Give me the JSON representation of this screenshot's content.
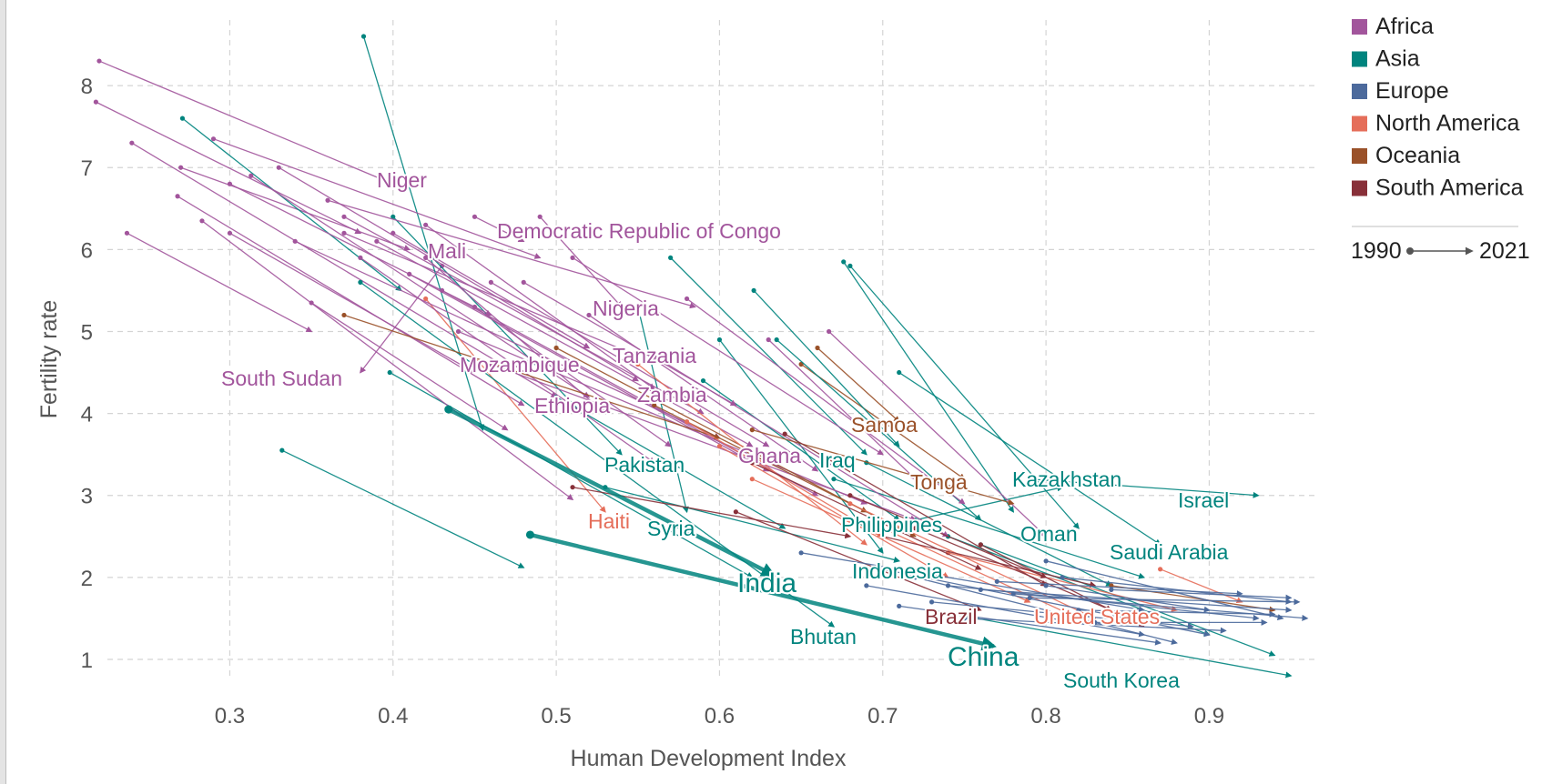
{
  "chart_data": {
    "type": "scatter",
    "subtype": "connected-arrows",
    "xlabel": "Human Development Index",
    "ylabel": "Fertility rate",
    "xlim": [
      0.215,
      0.965
    ],
    "ylim": [
      0.7,
      8.8
    ],
    "xticks": [
      "0.3",
      "0.4",
      "0.5",
      "0.6",
      "0.7",
      "0.8",
      "0.9"
    ],
    "xtick_values": [
      0.3,
      0.4,
      0.5,
      0.6,
      0.7,
      0.8,
      0.9
    ],
    "yticks": [
      "1",
      "2",
      "3",
      "4",
      "5",
      "6",
      "7",
      "8"
    ],
    "ytick_values": [
      1,
      2,
      3,
      4,
      5,
      6,
      7,
      8
    ],
    "grid": true,
    "legend_position": "top-right",
    "legend": [
      {
        "name": "Africa",
        "color": "#a2559c"
      },
      {
        "name": "Asia",
        "color": "#00847e"
      },
      {
        "name": "Europe",
        "color": "#4c6a9c"
      },
      {
        "name": "North America",
        "color": "#e56e5a"
      },
      {
        "name": "Oceania",
        "color": "#9a5129"
      },
      {
        "name": "South America",
        "color": "#883039"
      }
    ],
    "time_legend": {
      "start": "1990",
      "end": "2021"
    },
    "series": [
      {
        "name": "Niger",
        "region": "Africa",
        "x": [
          0.22,
          0.4
        ],
        "y": [
          8.3,
          6.8
        ],
        "labeled": true
      },
      {
        "name": "Democratic Republic of Congo",
        "region": "Africa",
        "x": [
          0.45,
          0.48
        ],
        "y": [
          6.4,
          6.1
        ],
        "labeled": true
      },
      {
        "name": "Mali",
        "region": "Africa",
        "x": [
          0.27,
          0.41
        ],
        "y": [
          7.0,
          6.0
        ],
        "labeled": true
      },
      {
        "name": "Nigeria",
        "region": "Africa",
        "x": [
          0.49,
          0.54
        ],
        "y": [
          6.4,
          5.3
        ],
        "labeled": true
      },
      {
        "name": "South Sudan",
        "region": "Africa",
        "x": [
          0.43,
          0.38
        ],
        "y": [
          5.8,
          4.5
        ],
        "labeled": true
      },
      {
        "name": "Mozambique",
        "region": "Africa",
        "x": [
          0.3,
          0.45
        ],
        "y": [
          6.2,
          4.5
        ],
        "labeled": true
      },
      {
        "name": "Tanzania",
        "region": "Africa",
        "x": [
          0.37,
          0.55
        ],
        "y": [
          6.2,
          4.7
        ],
        "labeled": true
      },
      {
        "name": "Ethiopia",
        "region": "Africa",
        "x": [
          0.24,
          0.5
        ],
        "y": [
          7.3,
          4.2
        ],
        "labeled": true
      },
      {
        "name": "Zambia",
        "region": "Africa",
        "x": [
          0.42,
          0.56
        ],
        "y": [
          6.3,
          4.3
        ],
        "labeled": true
      },
      {
        "name": "Pakistan",
        "region": "Asia",
        "x": [
          0.4,
          0.54
        ],
        "y": [
          6.4,
          3.5
        ],
        "labeled": true
      },
      {
        "name": "Ghana",
        "region": "Africa",
        "x": [
          0.46,
          0.63
        ],
        "y": [
          5.6,
          3.6
        ],
        "labeled": true
      },
      {
        "name": "Iraq",
        "region": "Asia",
        "x": [
          0.57,
          0.69
        ],
        "y": [
          5.9,
          3.5
        ],
        "labeled": true
      },
      {
        "name": "Samoa",
        "region": "Oceania",
        "x": [
          0.66,
          0.71
        ],
        "y": [
          4.8,
          3.9
        ],
        "labeled": true
      },
      {
        "name": "Tonga",
        "region": "Oceania",
        "x": [
          0.65,
          0.75
        ],
        "y": [
          4.6,
          3.2
        ],
        "labeled": true
      },
      {
        "name": "Kazakhstan",
        "region": "Asia",
        "x": [
          0.72,
          0.81
        ],
        "y": [
          2.7,
          3.1
        ],
        "labeled": true
      },
      {
        "name": "Israel",
        "region": "Asia",
        "x": [
          0.79,
          0.93
        ],
        "y": [
          3.2,
          3.0
        ],
        "labeled": true
      },
      {
        "name": "Haiti",
        "region": "North America",
        "x": [
          0.42,
          0.53
        ],
        "y": [
          5.4,
          2.8
        ],
        "labeled": true
      },
      {
        "name": "Syria",
        "region": "Asia",
        "x": [
          0.55,
          0.58
        ],
        "y": [
          5.3,
          2.8
        ],
        "labeled": true
      },
      {
        "name": "Philippines",
        "region": "Asia",
        "x": [
          0.59,
          0.71
        ],
        "y": [
          4.4,
          2.7
        ],
        "labeled": true
      },
      {
        "name": "Oman",
        "region": "Asia",
        "x": [
          0.68,
          0.82
        ],
        "y": [
          5.8,
          2.6
        ],
        "labeled": true
      },
      {
        "name": "Saudi Arabia",
        "region": "Asia",
        "x": [
          0.71,
          0.87
        ],
        "y": [
          4.5,
          2.4
        ],
        "labeled": true
      },
      {
        "name": "India",
        "region": "Asia",
        "x": [
          0.434,
          0.633
        ],
        "y": [
          4.05,
          2.03
        ],
        "labeled": true,
        "emphasis": true
      },
      {
        "name": "Indonesia",
        "region": "Asia",
        "x": [
          0.53,
          0.71
        ],
        "y": [
          3.1,
          2.2
        ],
        "labeled": true
      },
      {
        "name": "Brazil",
        "region": "South America",
        "x": [
          0.61,
          0.76
        ],
        "y": [
          2.8,
          1.6
        ],
        "labeled": true
      },
      {
        "name": "United States",
        "region": "North America",
        "x": [
          0.87,
          0.92
        ],
        "y": [
          2.1,
          1.7
        ],
        "labeled": true
      },
      {
        "name": "Bhutan",
        "region": "Asia",
        "x": [
          0.38,
          0.67
        ],
        "y": [
          5.6,
          1.4
        ],
        "labeled": true
      },
      {
        "name": "China",
        "region": "Asia",
        "x": [
          0.484,
          0.768
        ],
        "y": [
          2.52,
          1.16
        ],
        "labeled": true,
        "emphasis": true
      },
      {
        "name": "South Korea",
        "region": "Asia",
        "x": [
          0.73,
          0.95
        ],
        "y": [
          1.6,
          0.8
        ],
        "labeled": true
      },
      {
        "region": "Asia",
        "x": [
          0.382,
          0.455
        ],
        "y": [
          8.6,
          3.8
        ]
      },
      {
        "region": "Asia",
        "x": [
          0.271,
          0.405
        ],
        "y": [
          7.6,
          5.5
        ]
      },
      {
        "region": "Asia",
        "x": [
          0.332,
          0.48
        ],
        "y": [
          3.55,
          2.12
        ]
      },
      {
        "region": "Asia",
        "x": [
          0.398,
          0.62
        ],
        "y": [
          4.5,
          2.0
        ]
      },
      {
        "region": "Asia",
        "x": [
          0.621,
          0.71
        ],
        "y": [
          5.5,
          3.6
        ]
      },
      {
        "region": "Asia",
        "x": [
          0.676,
          0.78
        ],
        "y": [
          5.85,
          2.8
        ]
      },
      {
        "region": "Asia",
        "x": [
          0.635,
          0.76
        ],
        "y": [
          4.9,
          2.7
        ]
      },
      {
        "region": "Asia",
        "x": [
          0.6,
          0.7
        ],
        "y": [
          4.9,
          2.3
        ]
      },
      {
        "region": "Asia",
        "x": [
          0.67,
          0.86
        ],
        "y": [
          3.2,
          2.0
        ]
      },
      {
        "region": "Asia",
        "x": [
          0.5,
          0.64
        ],
        "y": [
          4.2,
          2.6
        ]
      },
      {
        "region": "Asia",
        "x": [
          0.74,
          0.9
        ],
        "y": [
          2.5,
          1.3
        ]
      },
      {
        "region": "Asia",
        "x": [
          0.69,
          0.84
        ],
        "y": [
          3.4,
          1.9
        ]
      },
      {
        "region": "Asia",
        "x": [
          0.76,
          0.94
        ],
        "y": [
          2.4,
          1.05
        ]
      },
      {
        "region": "Africa",
        "x": [
          0.29,
          0.49
        ],
        "y": [
          7.35,
          5.9
        ]
      },
      {
        "region": "Africa",
        "x": [
          0.36,
          0.585
        ],
        "y": [
          6.6,
          5.3
        ]
      },
      {
        "region": "Africa",
        "x": [
          0.218,
          0.38
        ],
        "y": [
          7.8,
          6.2
        ]
      },
      {
        "region": "Africa",
        "x": [
          0.237,
          0.35
        ],
        "y": [
          6.2,
          5.0
        ]
      },
      {
        "region": "Africa",
        "x": [
          0.268,
          0.48
        ],
        "y": [
          6.65,
          4.1
        ]
      },
      {
        "region": "Africa",
        "x": [
          0.283,
          0.51
        ],
        "y": [
          6.35,
          2.95
        ]
      },
      {
        "region": "Africa",
        "x": [
          0.3,
          0.46
        ],
        "y": [
          6.8,
          5.2
        ]
      },
      {
        "region": "Africa",
        "x": [
          0.313,
          0.52
        ],
        "y": [
          6.9,
          4.2
        ]
      },
      {
        "region": "Africa",
        "x": [
          0.33,
          0.55
        ],
        "y": [
          7.0,
          4.4
        ]
      },
      {
        "region": "Africa",
        "x": [
          0.34,
          0.6
        ],
        "y": [
          6.1,
          3.7
        ]
      },
      {
        "region": "Africa",
        "x": [
          0.35,
          0.47
        ],
        "y": [
          5.35,
          3.8
        ]
      },
      {
        "region": "Africa",
        "x": [
          0.37,
          0.59
        ],
        "y": [
          6.4,
          4.0
        ]
      },
      {
        "region": "Africa",
        "x": [
          0.38,
          0.56
        ],
        "y": [
          5.9,
          3.4
        ]
      },
      {
        "region": "Africa",
        "x": [
          0.39,
          0.62
        ],
        "y": [
          6.1,
          3.6
        ]
      },
      {
        "region": "Africa",
        "x": [
          0.41,
          0.63
        ],
        "y": [
          5.7,
          3.3
        ]
      },
      {
        "region": "Africa",
        "x": [
          0.43,
          0.66
        ],
        "y": [
          5.5,
          3.0
        ]
      },
      {
        "region": "Africa",
        "x": [
          0.44,
          0.69
        ],
        "y": [
          5.0,
          2.9
        ]
      },
      {
        "region": "Africa",
        "x": [
          0.46,
          0.72
        ],
        "y": [
          4.6,
          2.7
        ]
      },
      {
        "region": "Africa",
        "x": [
          0.58,
          0.75
        ],
        "y": [
          5.4,
          2.9
        ]
      },
      {
        "region": "Africa",
        "x": [
          0.51,
          0.7
        ],
        "y": [
          5.9,
          3.5
        ]
      },
      {
        "region": "Africa",
        "x": [
          0.48,
          0.61
        ],
        "y": [
          5.6,
          4.1
        ]
      },
      {
        "region": "Africa",
        "x": [
          0.52,
          0.66
        ],
        "y": [
          5.2,
          3.3
        ]
      },
      {
        "region": "Africa",
        "x": [
          0.56,
          0.74
        ],
        "y": [
          4.7,
          2.5
        ]
      },
      {
        "region": "Africa",
        "x": [
          0.63,
          0.72
        ],
        "y": [
          4.9,
          3.2
        ]
      },
      {
        "region": "Africa",
        "x": [
          0.667,
          0.8
        ],
        "y": [
          5.0,
          2.5
        ]
      },
      {
        "region": "Africa",
        "x": [
          0.4,
          0.52
        ],
        "y": [
          6.2,
          4.8
        ]
      },
      {
        "region": "Africa",
        "x": [
          0.42,
          0.53
        ],
        "y": [
          5.9,
          4.0
        ]
      },
      {
        "region": "Africa",
        "x": [
          0.45,
          0.57
        ],
        "y": [
          5.3,
          3.6
        ]
      },
      {
        "region": "Oceania",
        "x": [
          0.37,
          0.6
        ],
        "y": [
          5.2,
          3.7
        ]
      },
      {
        "region": "Oceania",
        "x": [
          0.5,
          0.69
        ],
        "y": [
          4.8,
          2.8
        ]
      },
      {
        "region": "Oceania",
        "x": [
          0.56,
          0.72
        ],
        "y": [
          4.1,
          2.5
        ]
      },
      {
        "region": "Oceania",
        "x": [
          0.62,
          0.78
        ],
        "y": [
          3.8,
          2.9
        ]
      },
      {
        "region": "Oceania",
        "x": [
          0.84,
          0.94
        ],
        "y": [
          1.9,
          1.6
        ]
      },
      {
        "region": "North America",
        "x": [
          0.55,
          0.69
        ],
        "y": [
          4.6,
          2.4
        ]
      },
      {
        "region": "North America",
        "x": [
          0.6,
          0.74
        ],
        "y": [
          3.6,
          2.0
        ]
      },
      {
        "region": "North America",
        "x": [
          0.62,
          0.79
        ],
        "y": [
          3.2,
          1.7
        ]
      },
      {
        "region": "North America",
        "x": [
          0.68,
          0.83
        ],
        "y": [
          2.9,
          1.5
        ]
      },
      {
        "region": "North America",
        "x": [
          0.7,
          0.82
        ],
        "y": [
          2.6,
          1.5
        ]
      },
      {
        "region": "North America",
        "x": [
          0.74,
          0.88
        ],
        "y": [
          2.3,
          1.6
        ]
      },
      {
        "region": "North America",
        "x": [
          0.58,
          0.7
        ],
        "y": [
          3.9,
          2.5
        ]
      },
      {
        "region": "South America",
        "x": [
          0.51,
          0.68
        ],
        "y": [
          3.1,
          2.5
        ]
      },
      {
        "region": "South America",
        "x": [
          0.62,
          0.76
        ],
        "y": [
          3.4,
          2.1
        ]
      },
      {
        "region": "South America",
        "x": [
          0.64,
          0.8
        ],
        "y": [
          3.75,
          1.9
        ]
      },
      {
        "region": "South America",
        "x": [
          0.68,
          0.8
        ],
        "y": [
          3.0,
          2.0
        ]
      },
      {
        "region": "South America",
        "x": [
          0.7,
          0.83
        ],
        "y": [
          2.5,
          1.9
        ]
      },
      {
        "region": "South America",
        "x": [
          0.72,
          0.84
        ],
        "y": [
          2.6,
          1.6
        ]
      },
      {
        "region": "South America",
        "x": [
          0.76,
          0.86
        ],
        "y": [
          2.4,
          1.4
        ]
      },
      {
        "region": "Europe",
        "x": [
          0.65,
          0.86
        ],
        "y": [
          2.3,
          1.6
        ]
      },
      {
        "region": "Europe",
        "x": [
          0.7,
          0.9
        ],
        "y": [
          2.1,
          1.3
        ]
      },
      {
        "region": "Europe",
        "x": [
          0.72,
          0.88
        ],
        "y": [
          2.0,
          1.2
        ]
      },
      {
        "region": "Europe",
        "x": [
          0.74,
          0.93
        ],
        "y": [
          1.9,
          1.5
        ]
      },
      {
        "region": "Europe",
        "x": [
          0.76,
          0.95
        ],
        "y": [
          1.85,
          1.6
        ]
      },
      {
        "region": "Europe",
        "x": [
          0.78,
          0.96
        ],
        "y": [
          1.8,
          1.5
        ]
      },
      {
        "region": "Europe",
        "x": [
          0.79,
          0.955
        ],
        "y": [
          1.75,
          1.7
        ]
      },
      {
        "region": "Europe",
        "x": [
          0.8,
          0.945
        ],
        "y": [
          2.2,
          1.5
        ]
      },
      {
        "region": "Europe",
        "x": [
          0.81,
          0.95
        ],
        "y": [
          2.0,
          1.7
        ]
      },
      {
        "region": "Europe",
        "x": [
          0.82,
          0.94
        ],
        "y": [
          1.6,
          1.55
        ]
      },
      {
        "region": "Europe",
        "x": [
          0.73,
          0.89
        ],
        "y": [
          1.7,
          1.4
        ]
      },
      {
        "region": "Europe",
        "x": [
          0.69,
          0.86
        ],
        "y": [
          1.9,
          1.3
        ]
      },
      {
        "region": "Europe",
        "x": [
          0.75,
          0.91
        ],
        "y": [
          1.5,
          1.35
        ]
      },
      {
        "region": "Europe",
        "x": [
          0.83,
          0.935
        ],
        "y": [
          1.45,
          1.45
        ]
      },
      {
        "region": "Europe",
        "x": [
          0.77,
          0.92
        ],
        "y": [
          1.95,
          1.8
        ]
      },
      {
        "region": "Europe",
        "x": [
          0.71,
          0.87
        ],
        "y": [
          1.65,
          1.2
        ]
      },
      {
        "region": "Europe",
        "x": [
          0.8,
          0.9
        ],
        "y": [
          1.9,
          1.6
        ]
      },
      {
        "region": "Europe",
        "x": [
          0.84,
          0.95
        ],
        "y": [
          1.85,
          1.75
        ]
      }
    ]
  }
}
